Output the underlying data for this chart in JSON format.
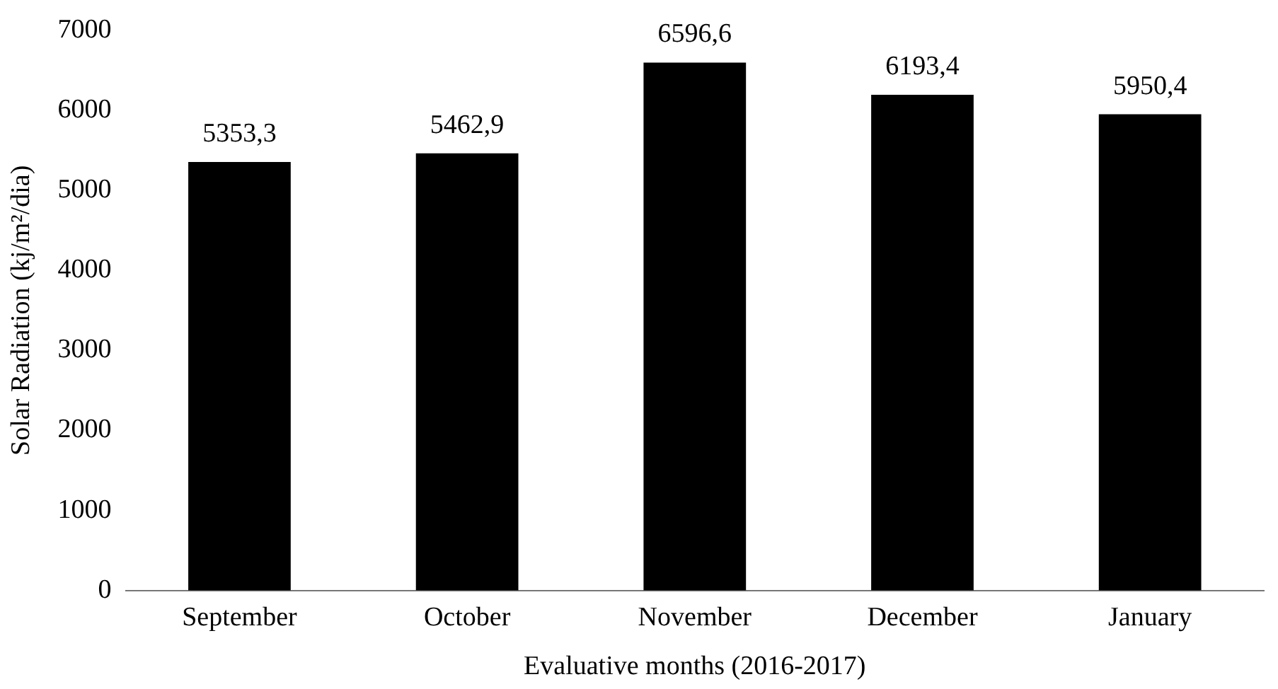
{
  "chart_data": {
    "type": "bar",
    "xlabel": "Evaluative months (2016-2017)",
    "ylabel": "Solar Radiation (kj/m²/dia)",
    "categories": [
      "September",
      "October",
      "November",
      "December",
      "January"
    ],
    "values": [
      5353.3,
      5462.9,
      6596.6,
      6193.4,
      5950.4
    ],
    "value_labels": [
      "5353,3",
      "5462,9",
      "6596,6",
      "6193,4",
      "5950,4"
    ],
    "color": "#000000",
    "ylim": [
      0,
      7000
    ],
    "yticks": [
      0,
      1000,
      2000,
      3000,
      4000,
      5000,
      6000,
      7000
    ],
    "grid": false,
    "legend": false
  }
}
